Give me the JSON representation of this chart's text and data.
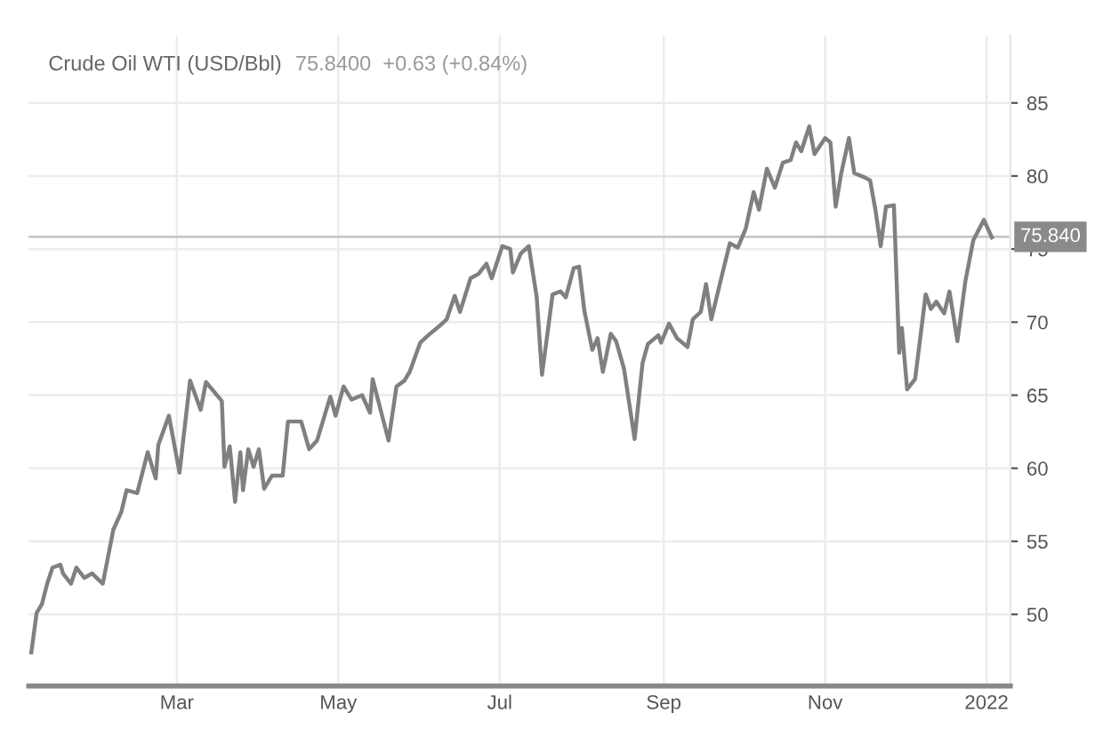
{
  "chart_data": {
    "type": "line",
    "title": "Crude Oil WTI (USD/Bbl)",
    "subtitle": "75.8400  +0.63 (+0.84%)",
    "series": [
      {
        "color": "#808080",
        "x": [
          "2021-01-05",
          "2021-01-07",
          "2021-01-09",
          "2021-01-11",
          "2021-01-13",
          "2021-01-16",
          "2021-01-17",
          "2021-01-20",
          "2021-01-22",
          "2021-01-25",
          "2021-01-28",
          "2021-02-01",
          "2021-02-05",
          "2021-02-08",
          "2021-02-10",
          "2021-02-14",
          "2021-02-18",
          "2021-02-21",
          "2021-02-22",
          "2021-02-26",
          "2021-03-02",
          "2021-03-06",
          "2021-03-10",
          "2021-03-12",
          "2021-03-18",
          "2021-03-19",
          "2021-03-21",
          "2021-03-23",
          "2021-03-25",
          "2021-03-26",
          "2021-03-28",
          "2021-03-30",
          "2021-04-01",
          "2021-04-03",
          "2021-04-06",
          "2021-04-10",
          "2021-04-12",
          "2021-04-17",
          "2021-04-20",
          "2021-04-23",
          "2021-04-28",
          "2021-04-30",
          "2021-05-03",
          "2021-05-06",
          "2021-05-10",
          "2021-05-13",
          "2021-05-14",
          "2021-05-16",
          "2021-05-20",
          "2021-05-23",
          "2021-05-26",
          "2021-05-28",
          "2021-06-01",
          "2021-06-04",
          "2021-06-08",
          "2021-06-11",
          "2021-06-14",
          "2021-06-16",
          "2021-06-20",
          "2021-06-23",
          "2021-06-26",
          "2021-06-28",
          "2021-07-02",
          "2021-07-05",
          "2021-07-06",
          "2021-07-09",
          "2021-07-12",
          "2021-07-15",
          "2021-07-17",
          "2021-07-21",
          "2021-07-24",
          "2021-07-26",
          "2021-07-29",
          "2021-07-31",
          "2021-08-02",
          "2021-08-05",
          "2021-08-07",
          "2021-08-09",
          "2021-08-12",
          "2021-08-14",
          "2021-08-17",
          "2021-08-21",
          "2021-08-24",
          "2021-08-26",
          "2021-08-30",
          "2021-08-31",
          "2021-09-03",
          "2021-09-06",
          "2021-09-10",
          "2021-09-12",
          "2021-09-15",
          "2021-09-17",
          "2021-09-19",
          "2021-09-23",
          "2021-09-26",
          "2021-09-29",
          "2021-10-02",
          "2021-10-05",
          "2021-10-07",
          "2021-10-10",
          "2021-10-13",
          "2021-10-16",
          "2021-10-19",
          "2021-10-21",
          "2021-10-23",
          "2021-10-26",
          "2021-10-28",
          "2021-11-01",
          "2021-11-03",
          "2021-11-05",
          "2021-11-07",
          "2021-11-10",
          "2021-11-12",
          "2021-11-16",
          "2021-11-18",
          "2021-11-20",
          "2021-11-22",
          "2021-11-24",
          "2021-11-27",
          "2021-11-29",
          "2021-11-30",
          "2021-12-02",
          "2021-12-05",
          "2021-12-09",
          "2021-12-11",
          "2021-12-13",
          "2021-12-16",
          "2021-12-18",
          "2021-12-21",
          "2021-12-24",
          "2021-12-27",
          "2021-12-31",
          "2022-01-03"
        ],
        "values": [
          47.4,
          50.1,
          50.7,
          52.1,
          53.2,
          53.4,
          52.8,
          52.1,
          53.2,
          52.5,
          52.8,
          52.1,
          55.8,
          57.0,
          58.5,
          58.3,
          61.1,
          59.3,
          61.6,
          63.6,
          59.7,
          66.0,
          64.0,
          65.9,
          64.6,
          60.1,
          61.5,
          57.7,
          61.1,
          58.5,
          61.3,
          60.1,
          61.3,
          58.6,
          59.5,
          59.5,
          63.2,
          63.2,
          61.3,
          61.9,
          64.9,
          63.6,
          65.6,
          64.7,
          65.0,
          63.8,
          66.1,
          64.7,
          61.9,
          65.6,
          66.0,
          66.6,
          68.6,
          69.1,
          69.7,
          70.2,
          71.8,
          70.7,
          73.0,
          73.3,
          74.0,
          73.0,
          75.2,
          75.0,
          73.4,
          74.7,
          75.2,
          71.7,
          66.4,
          71.9,
          72.1,
          71.7,
          73.7,
          73.8,
          70.8,
          68.1,
          68.9,
          66.6,
          69.2,
          68.7,
          66.8,
          62.0,
          67.2,
          68.5,
          69.1,
          68.6,
          69.9,
          68.9,
          68.3,
          70.2,
          70.7,
          72.6,
          70.2,
          73.2,
          75.4,
          75.1,
          76.4,
          78.9,
          77.7,
          80.5,
          79.2,
          80.9,
          81.1,
          82.3,
          81.7,
          83.4,
          81.5,
          82.6,
          82.3,
          77.9,
          80.1,
          82.6,
          80.2,
          79.9,
          79.7,
          77.7,
          75.2,
          77.9,
          78.0,
          67.9,
          69.6,
          65.4,
          66.1,
          71.9,
          70.9,
          71.4,
          70.6,
          72.1,
          68.7,
          72.8,
          75.6,
          77.0,
          75.8
        ]
      }
    ],
    "xlim": [
      "2021-01-04",
      "2022-01-10"
    ],
    "xticks": [
      {
        "value": "2021-03-01",
        "label": "Mar"
      },
      {
        "value": "2021-05-01",
        "label": "May"
      },
      {
        "value": "2021-07-01",
        "label": "Jul"
      },
      {
        "value": "2021-09-01",
        "label": "Sep"
      },
      {
        "value": "2021-11-01",
        "label": "Nov"
      },
      {
        "value": "2022-01-01",
        "label": "2022"
      }
    ],
    "ylim": [
      45.1,
      89.6
    ],
    "yticks": [
      50,
      55,
      60,
      65,
      70,
      75,
      80,
      85
    ],
    "ref_lines": [
      {
        "axis": "y",
        "value": 75.84,
        "label": "75.840",
        "color": "#c8c8c8"
      }
    ],
    "grid": true,
    "marker": "none",
    "line_style": "solid"
  }
}
